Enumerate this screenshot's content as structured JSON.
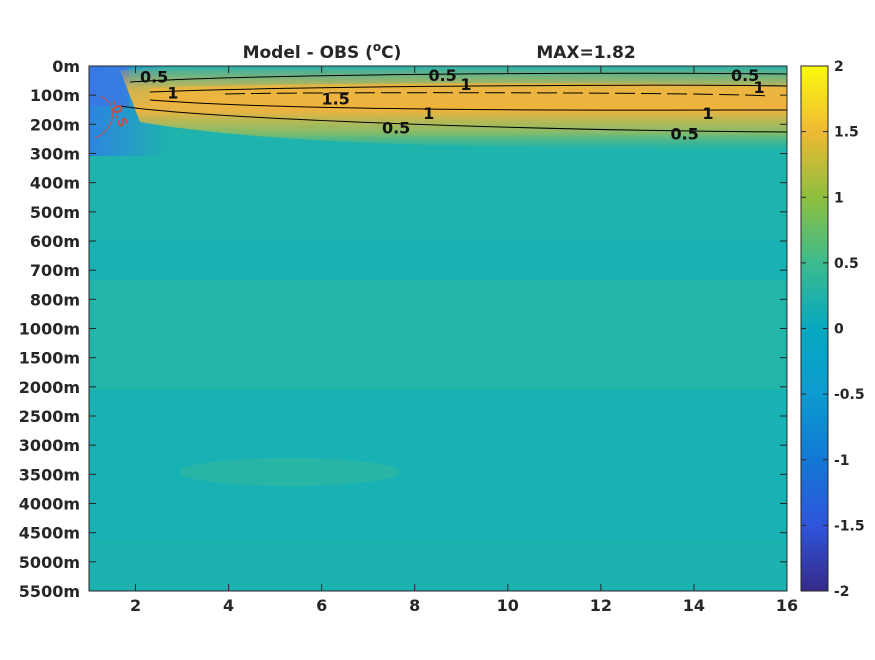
{
  "chart_data": {
    "type": "heatmap",
    "title": "Model - OBS (",
    "title_sup": "o",
    "title_unit": "C)",
    "max_label": "MAX=1.82",
    "colormap": "parula",
    "xlim": [
      1,
      16
    ],
    "x_ticks": [
      2,
      4,
      6,
      8,
      10,
      12,
      14,
      16
    ],
    "y_tick_labels": [
      "0m",
      "100m",
      "200m",
      "300m",
      "400m",
      "500m",
      "600m",
      "700m",
      "800m",
      "1000m",
      "1500m",
      "2000m",
      "2500m",
      "3000m",
      "3500m",
      "4000m",
      "4500m",
      "5000m",
      "5500m"
    ],
    "colorbar": {
      "range": [
        -2,
        2
      ],
      "ticks": [
        2,
        1.5,
        1,
        0.5,
        0,
        -0.5,
        -1,
        -1.5,
        -2
      ],
      "tick_labels": [
        "2",
        "1.5",
        "1",
        "0.5",
        "0",
        "-0.5",
        "-1",
        "-1.5",
        "-2"
      ]
    },
    "contour_labels": [
      {
        "text": "0.5",
        "x": 2.4,
        "level": 0.4
      },
      {
        "text": "1",
        "x": 2.8,
        "level": 0.95
      },
      {
        "text": "0.5",
        "x": 8.6,
        "level": 0.35
      },
      {
        "text": "1",
        "x": 9.1,
        "level": 0.65
      },
      {
        "text": "0.5",
        "x": 15.1,
        "level": 0.35
      },
      {
        "text": "1",
        "x": 15.4,
        "level": 0.75
      },
      {
        "text": "1.5",
        "x": 6.3,
        "level": 1.15
      },
      {
        "text": "1",
        "x": 8.3,
        "level": 1.65
      },
      {
        "text": "1",
        "x": 14.3,
        "level": 1.65
      },
      {
        "text": "0.5",
        "x": 7.6,
        "level": 2.15
      },
      {
        "text": "0.5",
        "x": 13.8,
        "level": 2.35
      },
      {
        "text": "-0.5",
        "x": 1.55,
        "level": 1.5
      }
    ]
  }
}
